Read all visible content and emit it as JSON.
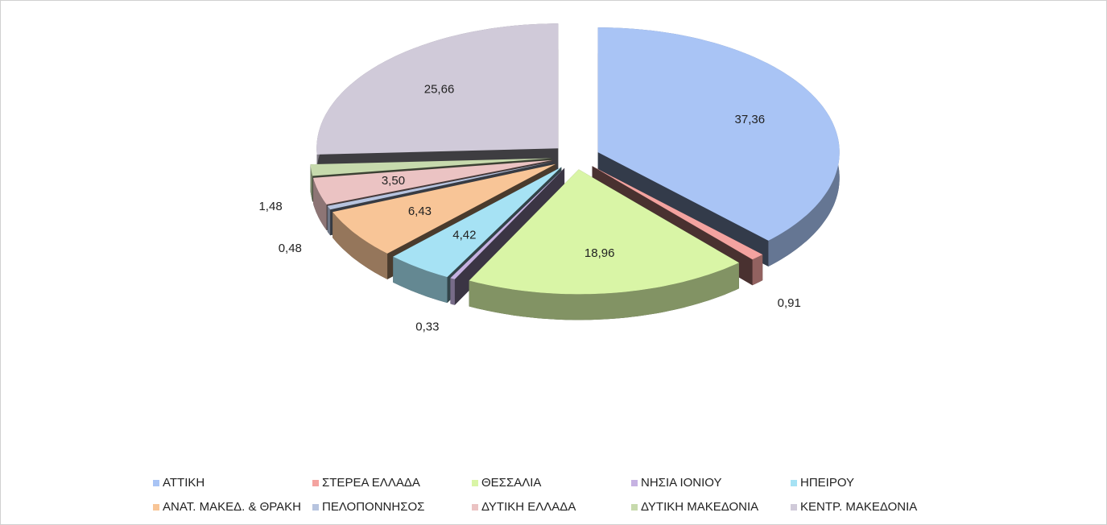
{
  "chart_data": {
    "type": "pie3d",
    "categories": [
      "ΑΤΤΙΚΗ",
      "ΣΤΕΡΕΑ ΕΛΛΑΔΑ",
      "ΘΕΣΣΑΛΙΑ",
      "ΝΗΣΙΑ ΙΟΝΙΟΥ",
      "ΗΠΕΙΡΟΥ",
      "ΑΝΑΤ. ΜΑΚΕΔ. & ΘΡΑΚΗ",
      "ΠΕΛΟΠΟΝΝΗΣΟΣ",
      "ΔΥΤΙΚΗ ΕΛΛΑΔΑ",
      "ΔΥΤΙΚΗ ΜΑΚΕΔΟΝΙΑ",
      "ΚΕΝΤΡ. ΜΑΚΕΔΟΝΙΑ"
    ],
    "values": [
      37.36,
      0.91,
      18.96,
      0.33,
      4.42,
      6.43,
      0.48,
      3.5,
      1.48,
      25.66
    ],
    "value_labels": [
      "37,36",
      "0,91",
      "18,96",
      "0,33",
      "4,42",
      "6,43",
      "0,48",
      "3,50",
      "1,48",
      "25,66"
    ],
    "colors": [
      "#a9c4f5",
      "#f4a3a0",
      "#d9f5a6",
      "#c6b2e2",
      "#a6e2f4",
      "#f8c597",
      "#b7c4df",
      "#ebc3c3",
      "#c7daad",
      "#d0cad9"
    ],
    "legend": "bottom"
  }
}
